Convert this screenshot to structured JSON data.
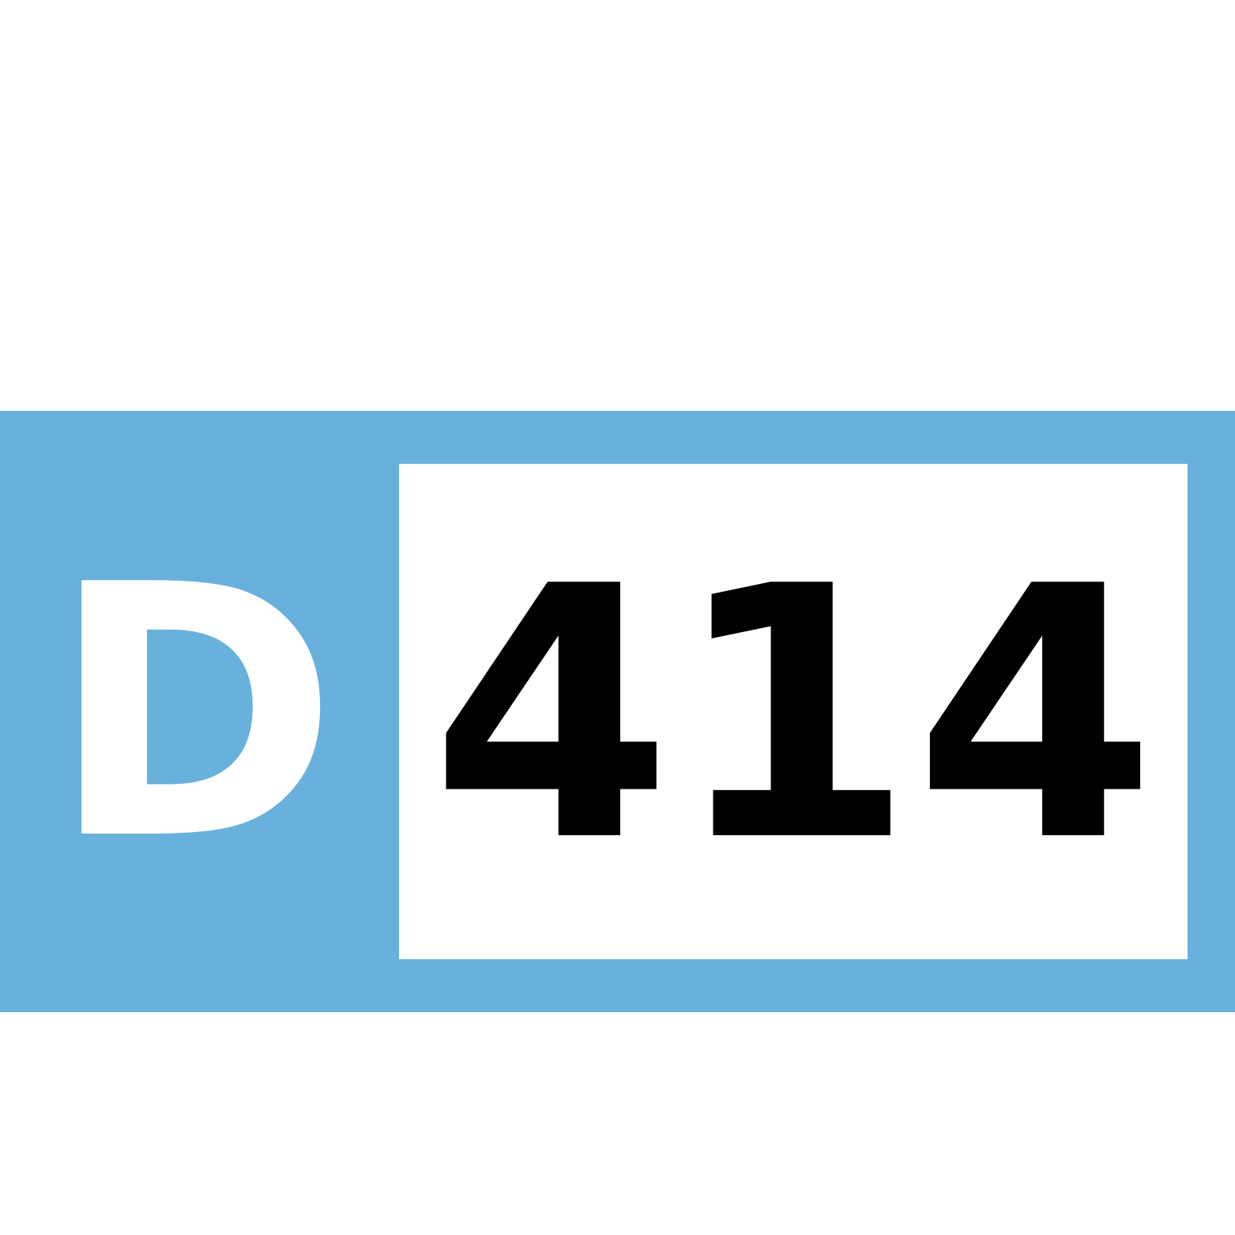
{
  "sign": {
    "prefix": "D",
    "number": "414",
    "colors": {
      "background": "#69b1dd",
      "prefix_text": "#ffffff",
      "number_panel": "#ffffff",
      "number_text": "#000000"
    }
  }
}
